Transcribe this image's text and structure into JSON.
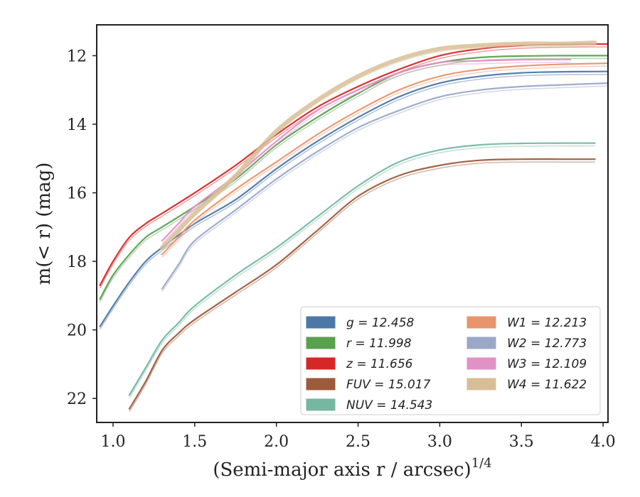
{
  "chart_data": {
    "type": "line",
    "xlabel": "(Semi-major axis r / arcsec)",
    "xlabel_sup": "1/4",
    "ylabel": "m(< r) (mag)",
    "xlim": [
      0.9,
      4.03
    ],
    "ylim": [
      22.7,
      11.1
    ],
    "y_inverted": true,
    "xticks": [
      1.0,
      1.5,
      2.0,
      2.5,
      3.0,
      3.5,
      4.0
    ],
    "xtick_labels": [
      "1.0",
      "1.5",
      "2.0",
      "2.5",
      "3.0",
      "3.5",
      "4.0"
    ],
    "yticks": [
      12,
      14,
      16,
      18,
      20,
      22
    ],
    "ytick_labels": [
      "12",
      "14",
      "16",
      "18",
      "20",
      "22"
    ],
    "grid": false,
    "legend_position": "lower-right",
    "legend_columns": 2,
    "series": [
      {
        "name": "g = 12.458",
        "color": "#4c78a8",
        "x": [
          0.92,
          1.0,
          1.1,
          1.2,
          1.3,
          1.5,
          1.75,
          2.0,
          2.25,
          2.5,
          2.75,
          3.0,
          3.25,
          3.5,
          3.75,
          4.03
        ],
        "y": [
          19.9,
          19.3,
          18.6,
          18.0,
          17.6,
          16.9,
          16.2,
          15.3,
          14.5,
          13.8,
          13.2,
          12.8,
          12.6,
          12.5,
          12.47,
          12.46
        ]
      },
      {
        "name": "r = 11.998",
        "color": "#59a14f",
        "x": [
          0.92,
          1.0,
          1.1,
          1.2,
          1.3,
          1.5,
          1.75,
          2.0,
          2.25,
          2.5,
          2.75,
          3.0,
          3.25,
          3.5,
          3.75,
          4.03
        ],
        "y": [
          19.1,
          18.4,
          17.8,
          17.3,
          17.0,
          16.4,
          15.6,
          14.6,
          13.8,
          13.1,
          12.5,
          12.2,
          12.05,
          12.01,
          12.0,
          12.0
        ]
      },
      {
        "name": "z = 11.656",
        "color": "#d62728",
        "x": [
          0.92,
          1.0,
          1.1,
          1.2,
          1.3,
          1.5,
          1.75,
          2.0,
          2.25,
          2.5,
          2.75,
          3.0,
          3.25,
          3.5,
          3.75,
          4.03
        ],
        "y": [
          18.7,
          18.0,
          17.3,
          16.9,
          16.6,
          16.0,
          15.2,
          14.3,
          13.5,
          12.9,
          12.4,
          12.0,
          11.8,
          11.7,
          11.67,
          11.66
        ]
      },
      {
        "name": "FUV = 15.017",
        "color": "#9c5b3a",
        "x": [
          1.1,
          1.2,
          1.3,
          1.4,
          1.5,
          1.75,
          2.0,
          2.25,
          2.5,
          2.75,
          3.0,
          3.25,
          3.5,
          3.75,
          3.95
        ],
        "y": [
          22.3,
          21.5,
          20.6,
          20.1,
          19.7,
          18.9,
          18.1,
          17.1,
          16.1,
          15.5,
          15.2,
          15.05,
          15.02,
          15.02,
          15.02
        ]
      },
      {
        "name": "NUV = 14.543",
        "color": "#76b7a2",
        "x": [
          1.1,
          1.2,
          1.3,
          1.4,
          1.5,
          1.75,
          2.0,
          2.25,
          2.5,
          2.75,
          3.0,
          3.25,
          3.5,
          3.75,
          3.95
        ],
        "y": [
          21.9,
          21.1,
          20.3,
          19.8,
          19.3,
          18.4,
          17.6,
          16.7,
          15.8,
          15.1,
          14.75,
          14.6,
          14.56,
          14.55,
          14.55
        ]
      },
      {
        "name": "W1 = 12.213",
        "color": "#e8956d",
        "x": [
          1.3,
          1.4,
          1.5,
          1.75,
          2.0,
          2.25,
          2.5,
          2.75,
          3.0,
          3.25,
          3.5,
          3.75,
          4.03
        ],
        "y": [
          17.8,
          17.3,
          16.8,
          15.9,
          15.1,
          14.3,
          13.6,
          13.0,
          12.6,
          12.4,
          12.3,
          12.25,
          12.22
        ]
      },
      {
        "name": "W2 = 12.773",
        "color": "#9aa8c8",
        "x": [
          1.3,
          1.4,
          1.5,
          1.75,
          2.0,
          2.25,
          2.5,
          2.75,
          3.0,
          3.25,
          3.5,
          3.75,
          4.03
        ],
        "y": [
          18.8,
          18.1,
          17.4,
          16.5,
          15.6,
          14.8,
          14.1,
          13.6,
          13.2,
          13.0,
          12.9,
          12.85,
          12.8
        ]
      },
      {
        "name": "W3 = 12.109",
        "color": "#e291c6",
        "x": [
          1.3,
          1.4,
          1.5,
          1.75,
          2.0,
          2.25,
          2.5,
          2.75,
          3.0,
          3.25,
          3.5,
          3.8
        ],
        "y": [
          17.4,
          16.9,
          16.4,
          15.5,
          14.5,
          13.6,
          13.0,
          12.5,
          12.2,
          12.15,
          12.12,
          12.11
        ]
      },
      {
        "name": "W4 = 11.622",
        "color": "#d8be96",
        "x": [
          1.3,
          1.4,
          1.5,
          1.75,
          2.0,
          2.25,
          2.5,
          2.75,
          3.0,
          3.25,
          3.5,
          3.75,
          3.95
        ],
        "y": [
          17.6,
          17.1,
          16.6,
          15.5,
          14.2,
          13.3,
          12.6,
          12.1,
          11.8,
          11.7,
          11.65,
          11.65,
          11.62
        ]
      }
    ]
  }
}
